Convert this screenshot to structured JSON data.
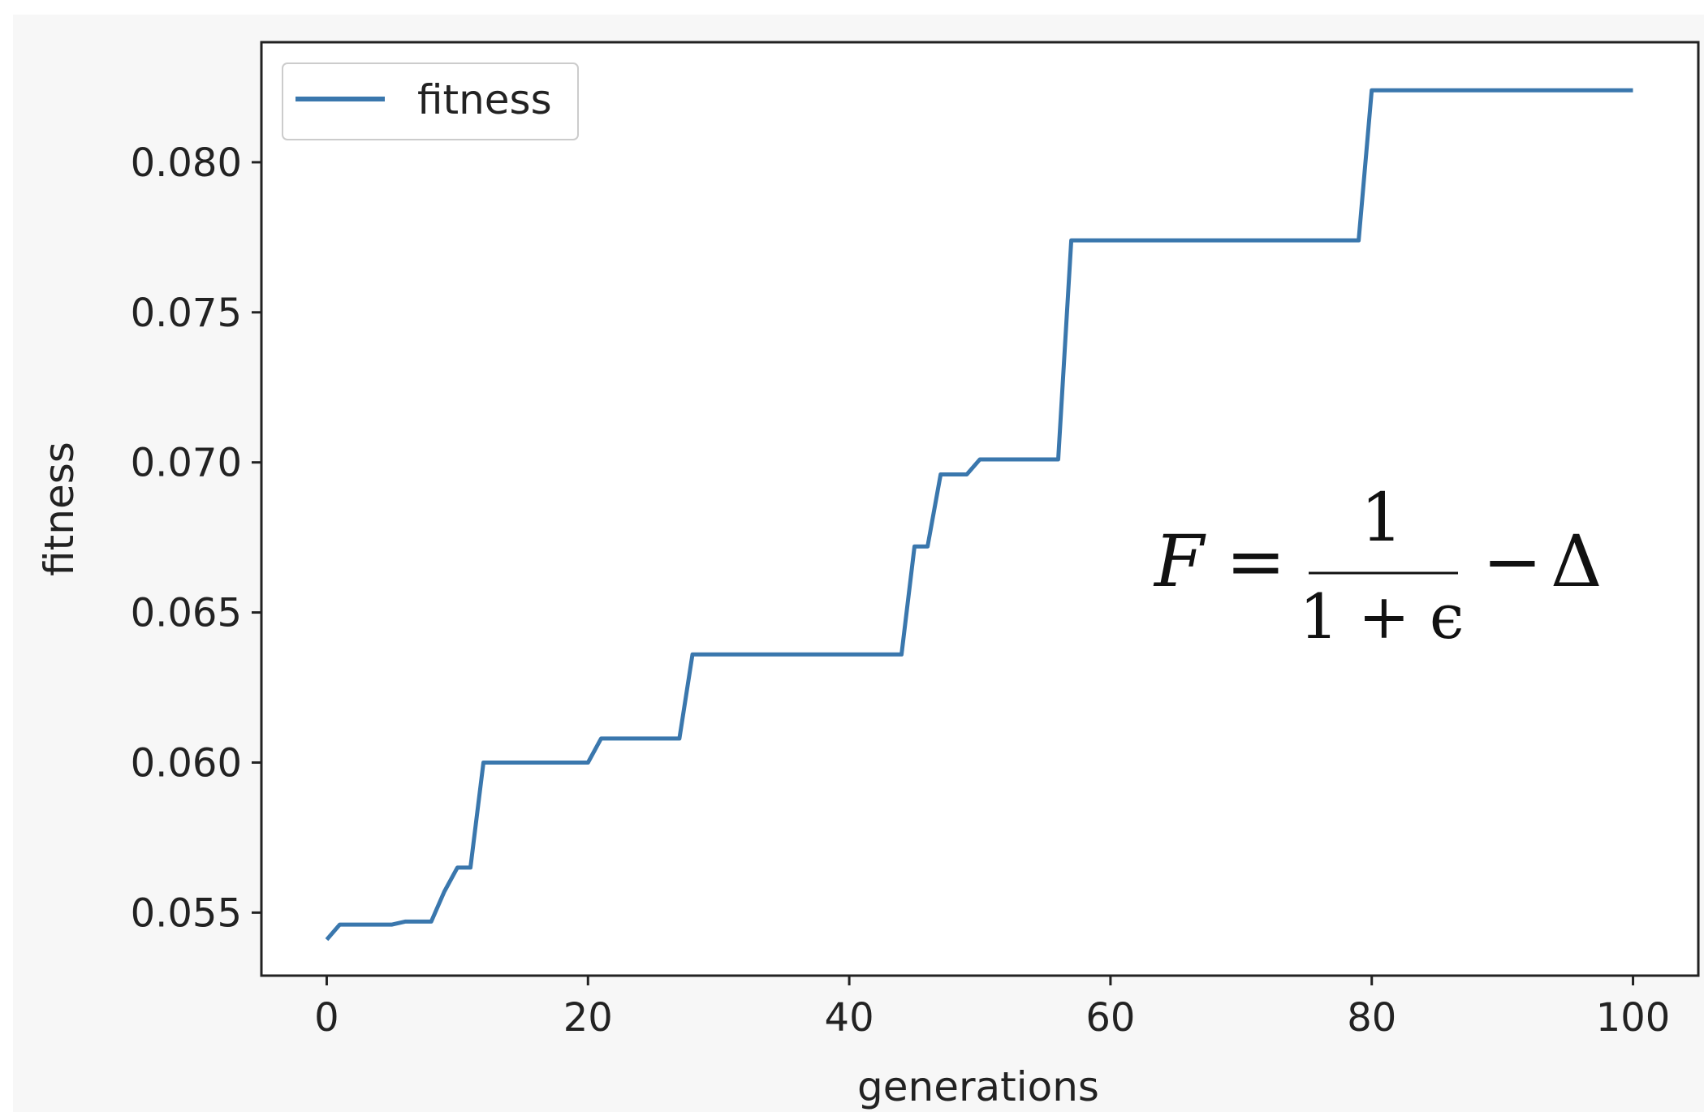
{
  "chart_data": {
    "type": "line",
    "xlabel": "generations",
    "ylabel": "fitness",
    "xlim": [
      -5,
      105
    ],
    "ylim": [
      0.0529,
      0.084
    ],
    "x_ticks": [
      "0",
      "20",
      "40",
      "60",
      "80",
      "100"
    ],
    "y_ticks": [
      "0.055",
      "0.060",
      "0.065",
      "0.070",
      "0.075",
      "0.080"
    ],
    "x_tick_values": [
      0,
      20,
      40,
      60,
      80,
      100
    ],
    "y_tick_values": [
      0.055,
      0.06,
      0.065,
      0.07,
      0.075,
      0.08
    ],
    "grid": false,
    "legend_position": "upper-left",
    "series": [
      {
        "name": "fitness",
        "color": "#3a77ad",
        "x": [
          0,
          1,
          2,
          3,
          4,
          5,
          6,
          7,
          8,
          9,
          10,
          11,
          12,
          13,
          14,
          15,
          16,
          17,
          18,
          19,
          20,
          21,
          22,
          23,
          24,
          25,
          26,
          27,
          28,
          29,
          30,
          31,
          32,
          33,
          34,
          35,
          36,
          37,
          38,
          39,
          40,
          41,
          42,
          43,
          44,
          45,
          46,
          47,
          48,
          49,
          50,
          51,
          52,
          53,
          54,
          55,
          56,
          57,
          58,
          59,
          60,
          61,
          62,
          63,
          64,
          65,
          66,
          67,
          68,
          69,
          70,
          71,
          72,
          73,
          74,
          75,
          76,
          77,
          78,
          79,
          80,
          81,
          82,
          83,
          84,
          85,
          86,
          87,
          88,
          89,
          90,
          91,
          92,
          93,
          94,
          95,
          96,
          97,
          98,
          99,
          100
        ],
        "values": [
          0.0541,
          0.0546,
          0.0546,
          0.0546,
          0.0546,
          0.0546,
          0.0547,
          0.0547,
          0.0547,
          0.0557,
          0.0565,
          0.0565,
          0.06,
          0.06,
          0.06,
          0.06,
          0.06,
          0.06,
          0.06,
          0.06,
          0.06,
          0.0608,
          0.0608,
          0.0608,
          0.0608,
          0.0608,
          0.0608,
          0.0608,
          0.0636,
          0.0636,
          0.0636,
          0.0636,
          0.0636,
          0.0636,
          0.0636,
          0.0636,
          0.0636,
          0.0636,
          0.0636,
          0.0636,
          0.0636,
          0.0636,
          0.0636,
          0.0636,
          0.0636,
          0.0672,
          0.0672,
          0.0696,
          0.0696,
          0.0696,
          0.0701,
          0.0701,
          0.0701,
          0.0701,
          0.0701,
          0.0701,
          0.0701,
          0.0774,
          0.0774,
          0.0774,
          0.0774,
          0.0774,
          0.0774,
          0.0774,
          0.0774,
          0.0774,
          0.0774,
          0.0774,
          0.0774,
          0.0774,
          0.0774,
          0.0774,
          0.0774,
          0.0774,
          0.0774,
          0.0774,
          0.0774,
          0.0774,
          0.0774,
          0.0774,
          0.0824,
          0.0824,
          0.0824,
          0.0824,
          0.0824,
          0.0824,
          0.0824,
          0.0824,
          0.0824,
          0.0824,
          0.0824,
          0.0824,
          0.0824,
          0.0824,
          0.0824,
          0.0824,
          0.0824,
          0.0824,
          0.0824,
          0.0824,
          0.0824
        ]
      }
    ],
    "legend": {
      "label": "fitness"
    },
    "annotation": {
      "lhs": "F",
      "equals": "=",
      "numerator": "1",
      "denominator": "1 + ϵ",
      "minus": "−",
      "tail": "Δ"
    }
  }
}
